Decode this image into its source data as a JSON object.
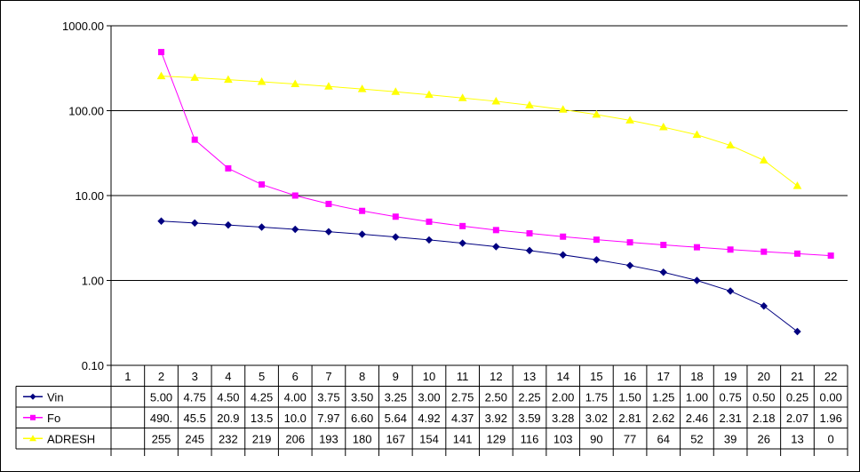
{
  "chart_data": {
    "type": "line",
    "y_scale": "log",
    "ylim": [
      0.1,
      1000
    ],
    "y_ticks": [
      "1000.00",
      "100.00",
      "10.00",
      "1.00",
      "0.10"
    ],
    "categories": [
      "1",
      "2",
      "3",
      "4",
      "5",
      "6",
      "7",
      "8",
      "9",
      "10",
      "11",
      "12",
      "13",
      "14",
      "15",
      "16",
      "17",
      "18",
      "19",
      "20",
      "21",
      "22"
    ],
    "grid": "horizontal major gridlines",
    "legend": "data table below plot",
    "series": [
      {
        "name": "Vin",
        "color": "#000080",
        "marker": "diamond",
        "values": [
          null,
          5.0,
          4.75,
          4.5,
          4.25,
          4.0,
          3.75,
          3.5,
          3.25,
          3.0,
          2.75,
          2.5,
          2.25,
          2.0,
          1.75,
          1.5,
          1.25,
          1.0,
          0.75,
          0.5,
          0.25,
          0.0
        ],
        "labels": [
          "",
          "5.00",
          "4.75",
          "4.50",
          "4.25",
          "4.00",
          "3.75",
          "3.50",
          "3.25",
          "3.00",
          "2.75",
          "2.50",
          "2.25",
          "2.00",
          "1.75",
          "1.50",
          "1.25",
          "1.00",
          "0.75",
          "0.50",
          "0.25",
          "0.00"
        ]
      },
      {
        "name": "Fo",
        "color": "#ff00ff",
        "marker": "square",
        "values": [
          null,
          490,
          45.5,
          20.9,
          13.5,
          10.0,
          7.97,
          6.6,
          5.64,
          4.92,
          4.37,
          3.92,
          3.59,
          3.28,
          3.02,
          2.81,
          2.62,
          2.46,
          2.31,
          2.18,
          2.07,
          1.96
        ],
        "labels": [
          "",
          "490.",
          "45.5",
          "20.9",
          "13.5",
          "10.0",
          "7.97",
          "6.60",
          "5.64",
          "4.92",
          "4.37",
          "3.92",
          "3.59",
          "3.28",
          "3.02",
          "2.81",
          "2.62",
          "2.46",
          "2.31",
          "2.18",
          "2.07",
          "1.96"
        ]
      },
      {
        "name": "ADRESH",
        "color": "#ffff00",
        "marker": "triangle",
        "values": [
          null,
          255,
          245,
          232,
          219,
          206,
          193,
          180,
          167,
          154,
          141,
          129,
          116,
          103,
          90,
          77,
          64,
          52,
          39,
          26,
          13,
          0
        ],
        "labels": [
          "",
          "255",
          "245",
          "232",
          "219",
          "206",
          "193",
          "180",
          "167",
          "154",
          "141",
          "129",
          "116",
          "103",
          "90",
          "77",
          "64",
          "52",
          "39",
          "26",
          "13",
          "0"
        ]
      }
    ]
  }
}
